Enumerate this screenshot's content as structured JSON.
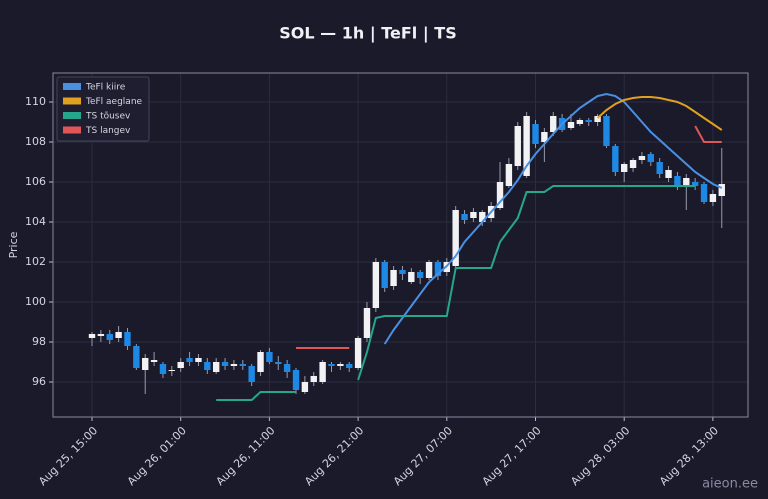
{
  "chart_data": {
    "type": "candlestick",
    "title": "SOL — 1h  |  TeFl  |  TS",
    "y_label": "Price",
    "watermark": "aieon.ee",
    "categories": [
      "Aug 25, 15:00",
      null,
      null,
      null,
      null,
      null,
      null,
      null,
      null,
      null,
      "Aug 26, 01:00",
      null,
      null,
      null,
      null,
      null,
      null,
      null,
      null,
      null,
      "Aug 26, 11:00",
      null,
      null,
      null,
      null,
      null,
      null,
      null,
      null,
      null,
      "Aug 26, 21:00",
      null,
      null,
      null,
      null,
      null,
      null,
      null,
      null,
      null,
      "Aug 27, 07:00",
      null,
      null,
      null,
      null,
      null,
      null,
      null,
      null,
      null,
      "Aug 27, 17:00",
      null,
      null,
      null,
      null,
      null,
      null,
      null,
      null,
      null,
      "Aug 28, 03:00",
      null,
      null,
      null,
      null,
      null,
      null,
      null,
      null,
      null,
      "Aug 28, 13:00",
      null
    ],
    "open": [
      98.2,
      98.3,
      98.4,
      98.2,
      98.5,
      97.8,
      96.6,
      97.0,
      96.9,
      96.6,
      96.7,
      97.2,
      97.0,
      97.0,
      96.5,
      97.0,
      96.8,
      96.9,
      96.8,
      96.5,
      97.5,
      97.0,
      96.9,
      96.6,
      95.5,
      96.0,
      96.0,
      96.9,
      96.8,
      96.9,
      96.7,
      98.2,
      99.7,
      102.0,
      100.8,
      101.6,
      101.0,
      101.5,
      101.2,
      102.0,
      101.5,
      101.8,
      104.4,
      104.2,
      104.0,
      104.2,
      104.7,
      105.8,
      106.8,
      106.3,
      108.9,
      108.0,
      108.5,
      109.2,
      108.7,
      108.9,
      109.1,
      109.0,
      109.3,
      107.8,
      106.5,
      106.7,
      107.1,
      107.4,
      107.0,
      106.2,
      106.3,
      105.8,
      106.0,
      105.9,
      105.0,
      105.3
    ],
    "high": [
      98.5,
      98.6,
      98.6,
      98.8,
      98.7,
      97.9,
      97.4,
      97.5,
      97.0,
      96.8,
      97.2,
      97.5,
      97.4,
      97.2,
      97.2,
      97.2,
      97.1,
      97.1,
      96.9,
      97.6,
      97.7,
      97.3,
      97.1,
      96.7,
      96.3,
      96.5,
      97.1,
      97.0,
      97.0,
      97.0,
      98.3,
      100.0,
      102.2,
      102.1,
      101.8,
      101.8,
      101.7,
      101.6,
      102.1,
      102.1,
      102.2,
      104.8,
      104.6,
      104.7,
      104.6,
      105.0,
      107.0,
      107.2,
      109.0,
      109.5,
      109.1,
      108.7,
      109.5,
      109.4,
      109.4,
      109.2,
      109.2,
      109.4,
      109.4,
      107.9,
      107.0,
      107.2,
      107.5,
      107.5,
      107.2,
      106.8,
      106.5,
      106.4,
      106.2,
      106.0,
      105.6,
      107.7
    ],
    "low": [
      97.8,
      98.0,
      97.9,
      98.0,
      97.6,
      96.6,
      95.4,
      96.8,
      96.2,
      96.3,
      96.5,
      96.8,
      96.8,
      96.4,
      96.4,
      96.6,
      96.6,
      96.6,
      95.8,
      96.3,
      96.9,
      96.6,
      96.2,
      95.4,
      95.4,
      95.8,
      95.9,
      96.5,
      96.6,
      96.5,
      96.6,
      98.0,
      99.5,
      100.5,
      100.6,
      101.1,
      100.9,
      100.9,
      101.1,
      101.1,
      101.3,
      101.6,
      103.9,
      104.0,
      103.8,
      104.0,
      104.6,
      105.7,
      106.6,
      106.2,
      107.7,
      107.0,
      108.3,
      108.5,
      108.6,
      108.8,
      108.8,
      108.8,
      107.7,
      106.3,
      106.0,
      106.5,
      106.9,
      106.8,
      106.2,
      106.0,
      105.6,
      104.6,
      105.6,
      104.9,
      104.8,
      103.7
    ],
    "close": [
      98.4,
      98.4,
      98.1,
      98.5,
      97.8,
      96.7,
      97.2,
      97.1,
      96.4,
      96.6,
      97.0,
      97.0,
      97.2,
      96.6,
      97.0,
      96.8,
      96.9,
      96.8,
      96.0,
      97.5,
      97.0,
      96.9,
      96.5,
      95.6,
      96.0,
      96.3,
      97.0,
      96.8,
      96.9,
      96.7,
      98.2,
      99.7,
      102.0,
      100.7,
      101.6,
      101.4,
      101.5,
      101.2,
      102.0,
      101.3,
      102.0,
      104.6,
      104.1,
      104.5,
      104.5,
      104.8,
      106.0,
      106.9,
      108.8,
      109.3,
      107.9,
      108.5,
      109.3,
      108.6,
      109.0,
      109.1,
      109.0,
      109.3,
      107.8,
      106.5,
      106.9,
      107.1,
      107.3,
      107.0,
      106.4,
      106.6,
      105.8,
      106.2,
      105.8,
      105.0,
      105.4,
      105.9
    ],
    "up_color": "#f2f2f5",
    "down_color": "#1e88e5",
    "series": [
      {
        "name": "TeFl kiire",
        "color": "#4a90e2",
        "values": [
          null,
          null,
          null,
          null,
          null,
          null,
          null,
          null,
          null,
          null,
          null,
          null,
          null,
          null,
          null,
          null,
          null,
          null,
          null,
          null,
          null,
          null,
          null,
          null,
          null,
          null,
          null,
          null,
          null,
          null,
          null,
          null,
          null,
          97.9,
          98.6,
          99.2,
          99.8,
          100.4,
          101.0,
          101.4,
          101.8,
          102.3,
          103.0,
          103.5,
          104.0,
          104.5,
          105.0,
          105.5,
          106.1,
          106.8,
          107.4,
          107.9,
          108.4,
          108.9,
          109.3,
          109.7,
          110.0,
          110.3,
          110.4,
          110.3,
          110.0,
          109.5,
          109.0,
          108.5,
          108.1,
          107.7,
          107.3,
          106.9,
          106.5,
          106.2,
          105.9,
          105.7
        ]
      },
      {
        "name": "TeFl aeglane",
        "color": "#e0a020",
        "values": [
          null,
          null,
          null,
          null,
          null,
          null,
          null,
          null,
          null,
          null,
          null,
          null,
          null,
          null,
          null,
          null,
          null,
          null,
          null,
          null,
          null,
          null,
          null,
          null,
          null,
          null,
          null,
          null,
          null,
          null,
          null,
          null,
          null,
          null,
          null,
          null,
          null,
          null,
          null,
          null,
          null,
          null,
          null,
          null,
          null,
          null,
          null,
          null,
          null,
          null,
          null,
          null,
          null,
          null,
          null,
          null,
          null,
          109.2,
          109.6,
          109.9,
          110.1,
          110.2,
          110.25,
          110.25,
          110.2,
          110.1,
          110.0,
          109.8,
          109.5,
          109.2,
          108.9,
          108.6
        ]
      },
      {
        "name": "TS tõusev",
        "color": "#26a68a",
        "values": [
          null,
          null,
          null,
          null,
          null,
          null,
          null,
          null,
          null,
          null,
          null,
          null,
          null,
          null,
          95.1,
          95.1,
          95.1,
          95.1,
          95.1,
          95.5,
          95.5,
          95.5,
          95.5,
          95.5,
          null,
          null,
          null,
          null,
          null,
          null,
          96.1,
          97.5,
          99.2,
          99.3,
          99.3,
          99.3,
          99.3,
          99.3,
          99.3,
          99.3,
          99.3,
          101.7,
          101.7,
          101.7,
          101.7,
          101.7,
          103.0,
          103.6,
          104.2,
          105.5,
          105.5,
          105.5,
          105.8,
          105.8,
          105.8,
          105.8,
          105.8,
          105.8,
          105.8,
          105.8,
          105.8,
          105.8,
          105.8,
          105.8,
          105.8,
          105.8,
          105.8,
          105.8,
          105.8,
          null,
          null,
          null
        ]
      },
      {
        "name": "TS langev",
        "color": "#e05555",
        "values": [
          null,
          null,
          null,
          null,
          null,
          null,
          null,
          null,
          null,
          null,
          null,
          null,
          null,
          null,
          null,
          null,
          null,
          null,
          null,
          null,
          null,
          null,
          null,
          97.7,
          97.7,
          97.7,
          97.7,
          97.7,
          97.7,
          97.7,
          null,
          null,
          null,
          null,
          null,
          null,
          null,
          null,
          null,
          null,
          null,
          null,
          null,
          null,
          null,
          null,
          null,
          null,
          null,
          null,
          null,
          null,
          null,
          null,
          null,
          null,
          null,
          null,
          null,
          null,
          null,
          null,
          null,
          null,
          null,
          null,
          null,
          null,
          108.8,
          108.0,
          108.0,
          108.0
        ]
      }
    ],
    "ylim": [
      94.25,
      111.45
    ],
    "yticks": [
      96,
      98,
      100,
      102,
      104,
      106,
      108,
      110
    ],
    "grid": true,
    "legend": "upper left"
  }
}
